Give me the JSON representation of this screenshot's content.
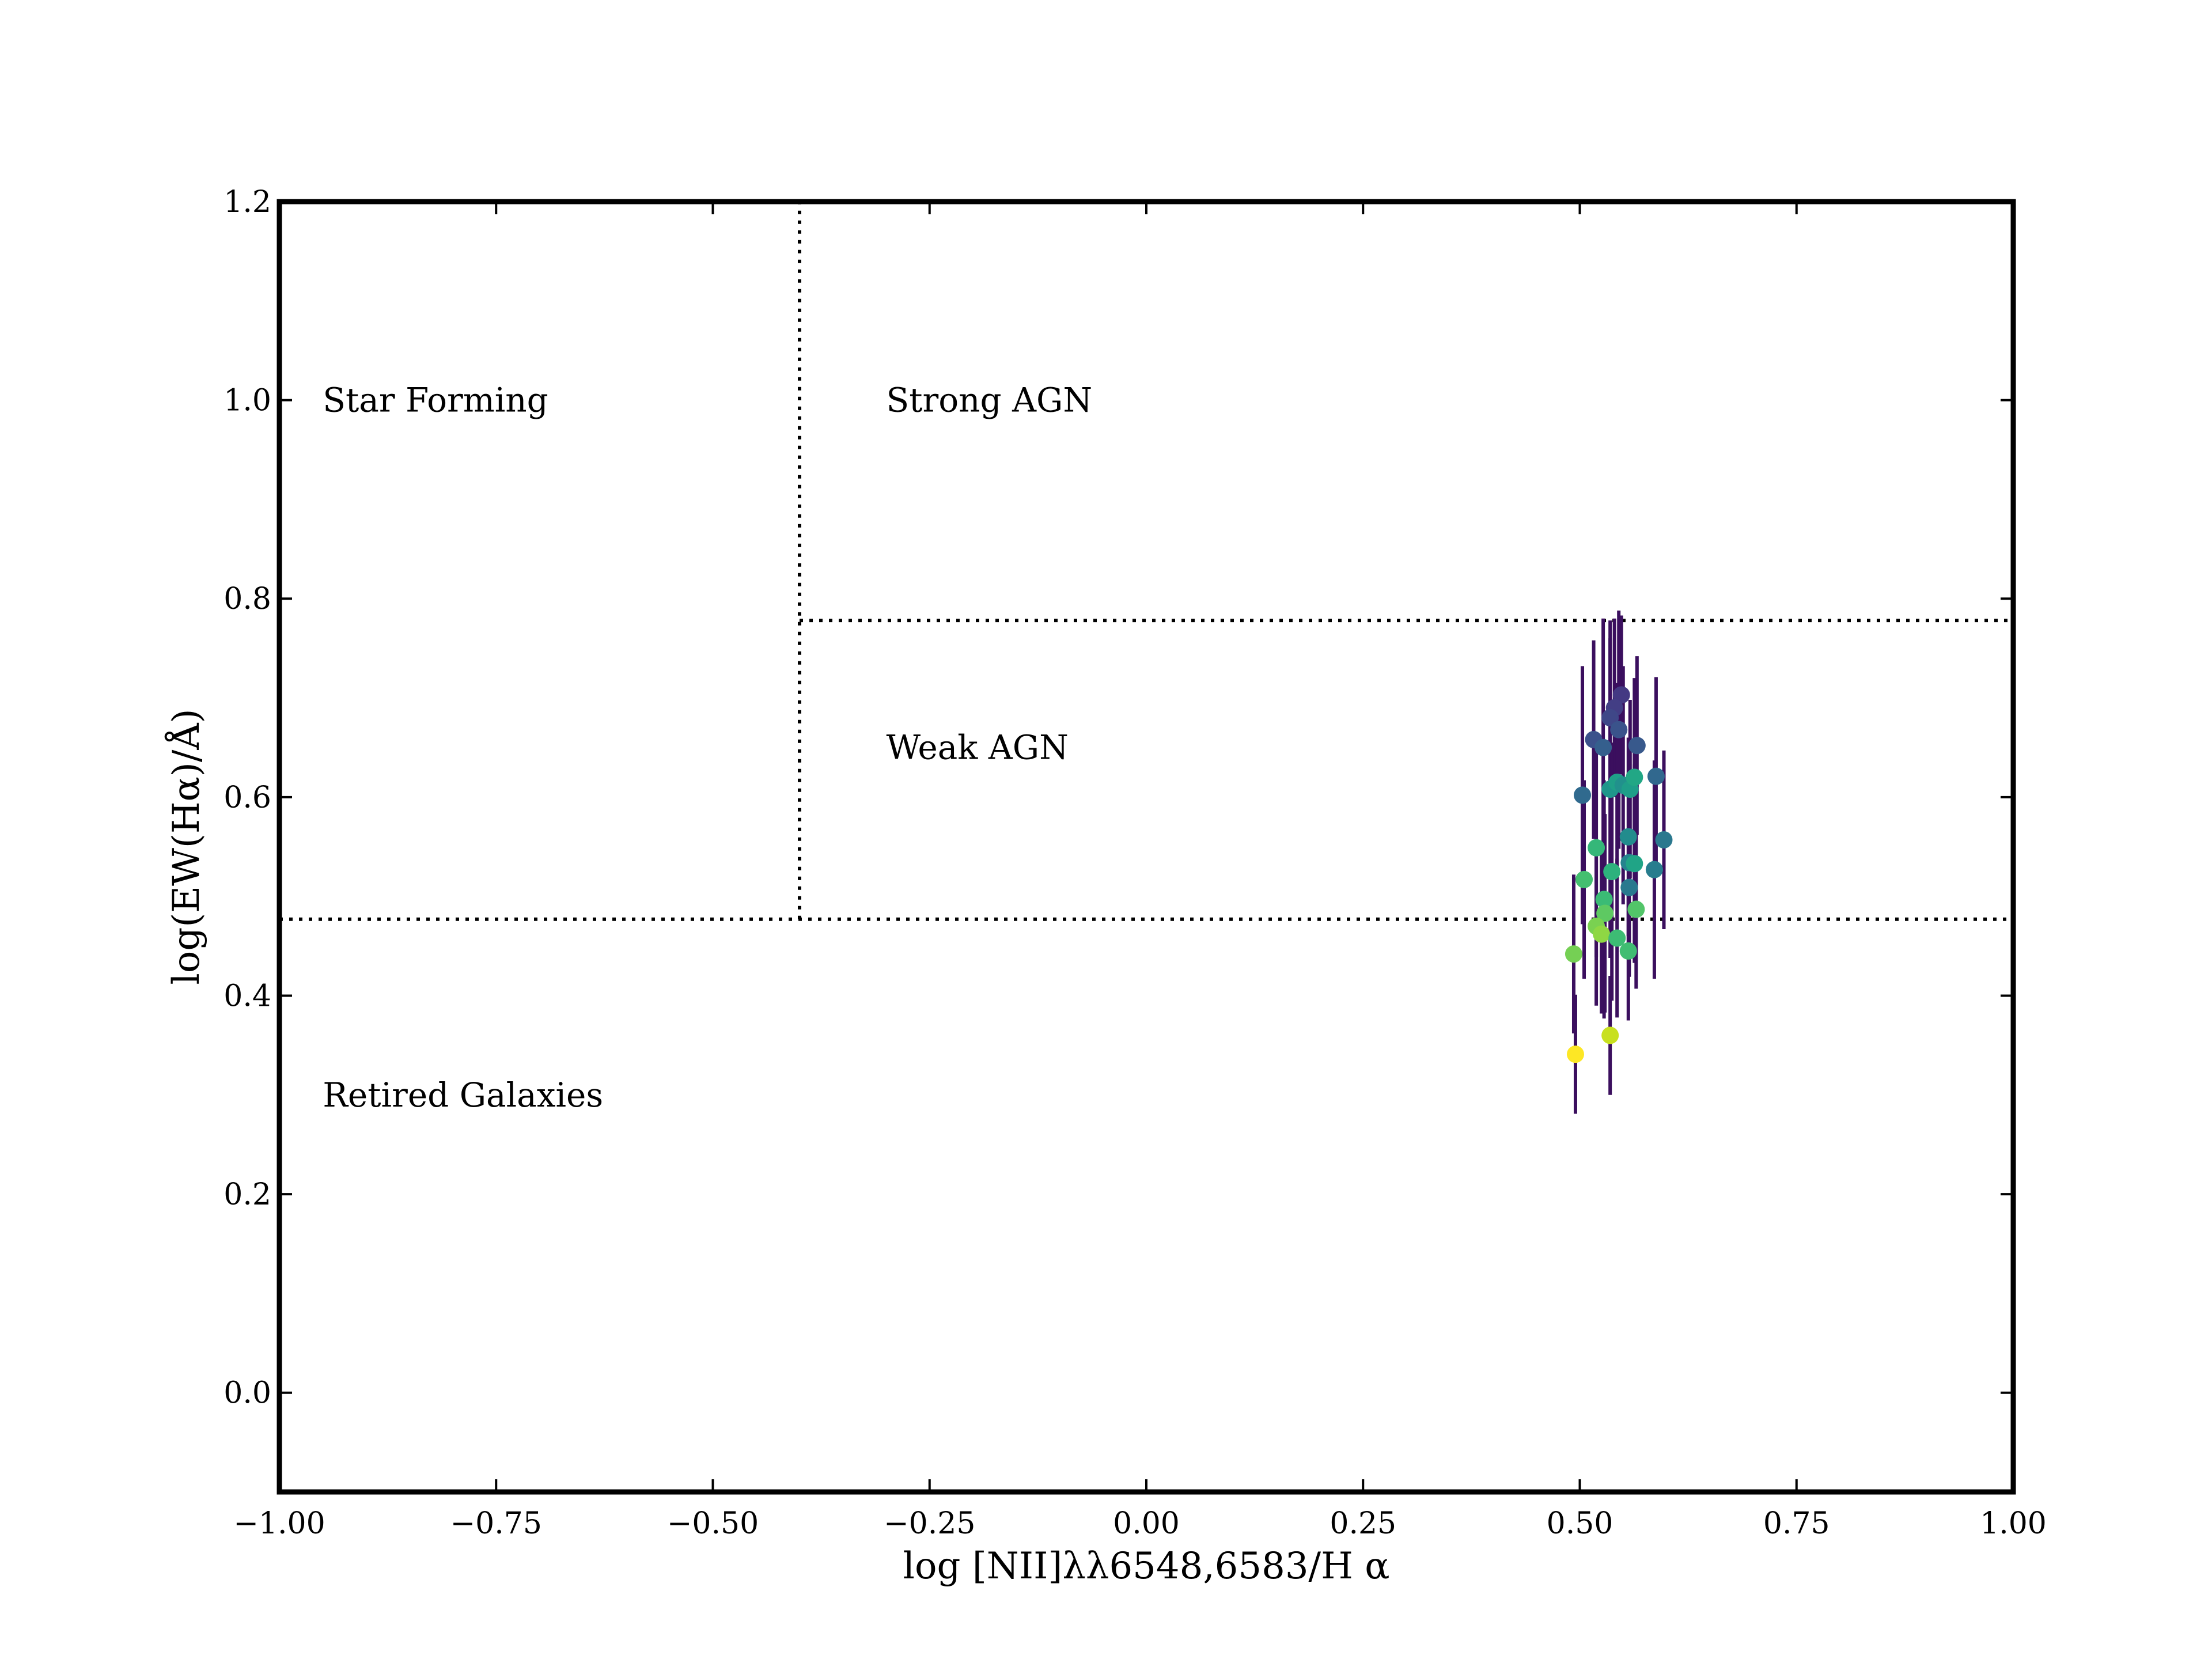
{
  "chart_data": {
    "type": "scatter",
    "title": "",
    "xlabel": "log [NII]λλ6548,6583/H α",
    "ylabel": "log(EW(Hα)/Å)",
    "xlim": [
      -1.0,
      1.0
    ],
    "ylim": [
      -0.1,
      1.2
    ],
    "xticks": [
      -1.0,
      -0.75,
      -0.5,
      -0.25,
      0.0,
      0.25,
      0.5,
      0.75,
      1.0
    ],
    "xtick_labels": [
      "−1.00",
      "−0.75",
      "−0.50",
      "−0.25",
      "0.00",
      "0.25",
      "0.50",
      "0.75",
      "1.00"
    ],
    "yticks": [
      0.0,
      0.2,
      0.4,
      0.6,
      0.8,
      1.0,
      1.2
    ],
    "ytick_labels": [
      "0.0",
      "0.2",
      "0.4",
      "0.6",
      "0.8",
      "1.0",
      "1.2"
    ],
    "grid": false,
    "legend": "none",
    "colormap": "viridis",
    "errorbar_color": "#3b0f5e",
    "divider_lines": {
      "style": "dotted",
      "vertical": {
        "x": -0.4,
        "y_from": 0.477,
        "y_to": 1.2
      },
      "horizontal_lower": {
        "y": 0.477,
        "x_from": -1.0,
        "x_to": 1.0
      },
      "horizontal_upper": {
        "y": 0.778,
        "x_from": -0.4,
        "x_to": 1.0
      }
    },
    "region_labels": [
      {
        "text": "Star Forming",
        "x": -0.95,
        "y": 1.0
      },
      {
        "text": "Strong AGN",
        "x": -0.3,
        "y": 1.0
      },
      {
        "text": "Weak AGN",
        "x": -0.3,
        "y": 0.65
      },
      {
        "text": "Retired Galaxies",
        "x": -0.95,
        "y": 0.3
      }
    ],
    "points": [
      {
        "x": 0.548,
        "y": 0.703,
        "yerr": 0.08,
        "color": "#443983"
      },
      {
        "x": 0.54,
        "y": 0.69,
        "yerr": 0.09,
        "color": "#433e85"
      },
      {
        "x": 0.535,
        "y": 0.68,
        "yerr": 0.08,
        "color": "#3f4788"
      },
      {
        "x": 0.545,
        "y": 0.668,
        "yerr": 0.12,
        "color": "#3a538b"
      },
      {
        "x": 0.516,
        "y": 0.658,
        "yerr": 0.1,
        "color": "#3b518b"
      },
      {
        "x": 0.527,
        "y": 0.65,
        "yerr": 0.13,
        "color": "#355f8d"
      },
      {
        "x": 0.566,
        "y": 0.652,
        "yerr": 0.09,
        "color": "#38598c"
      },
      {
        "x": 0.588,
        "y": 0.621,
        "yerr": 0.1,
        "color": "#31688e"
      },
      {
        "x": 0.503,
        "y": 0.602,
        "yerr": 0.13,
        "color": "#306a8e"
      },
      {
        "x": 0.535,
        "y": 0.608,
        "yerr": 0.17,
        "color": "#1f968b"
      },
      {
        "x": 0.543,
        "y": 0.615,
        "yerr": 0.1,
        "color": "#1fa088"
      },
      {
        "x": 0.55,
        "y": 0.612,
        "yerr": 0.12,
        "color": "#21918c"
      },
      {
        "x": 0.558,
        "y": 0.608,
        "yerr": 0.09,
        "color": "#1f9e89"
      },
      {
        "x": 0.563,
        "y": 0.62,
        "yerr": 0.1,
        "color": "#22a785"
      },
      {
        "x": 0.597,
        "y": 0.557,
        "yerr": 0.09,
        "color": "#2a788e"
      },
      {
        "x": 0.556,
        "y": 0.56,
        "yerr": 0.1,
        "color": "#228c8d"
      },
      {
        "x": 0.519,
        "y": 0.549,
        "yerr": 0.11,
        "color": "#35b779"
      },
      {
        "x": 0.557,
        "y": 0.534,
        "yerr": 0.09,
        "color": "#25838e"
      },
      {
        "x": 0.563,
        "y": 0.533,
        "yerr": 0.1,
        "color": "#20a486"
      },
      {
        "x": 0.586,
        "y": 0.527,
        "yerr": 0.11,
        "color": "#287d8e"
      },
      {
        "x": 0.537,
        "y": 0.525,
        "yerr": 0.13,
        "color": "#2db27d"
      },
      {
        "x": 0.505,
        "y": 0.517,
        "yerr": 0.1,
        "color": "#44bf70"
      },
      {
        "x": 0.557,
        "y": 0.509,
        "yerr": 0.09,
        "color": "#29798e"
      },
      {
        "x": 0.528,
        "y": 0.497,
        "yerr": 0.12,
        "color": "#3bbb75"
      },
      {
        "x": 0.565,
        "y": 0.487,
        "yerr": 0.08,
        "color": "#52c569"
      },
      {
        "x": 0.529,
        "y": 0.483,
        "yerr": 0.1,
        "color": "#5ec962"
      },
      {
        "x": 0.519,
        "y": 0.47,
        "yerr": 0.08,
        "color": "#7ad151"
      },
      {
        "x": 0.525,
        "y": 0.462,
        "yerr": 0.08,
        "color": "#8fd744"
      },
      {
        "x": 0.543,
        "y": 0.458,
        "yerr": 0.08,
        "color": "#3dbc74"
      },
      {
        "x": 0.556,
        "y": 0.445,
        "yerr": 0.07,
        "color": "#40bd72"
      },
      {
        "x": 0.493,
        "y": 0.442,
        "yerr": 0.08,
        "color": "#75d054"
      },
      {
        "x": 0.535,
        "y": 0.36,
        "yerr": 0.06,
        "color": "#c8e020"
      },
      {
        "x": 0.495,
        "y": 0.341,
        "yerr": 0.06,
        "color": "#fde725"
      }
    ]
  }
}
